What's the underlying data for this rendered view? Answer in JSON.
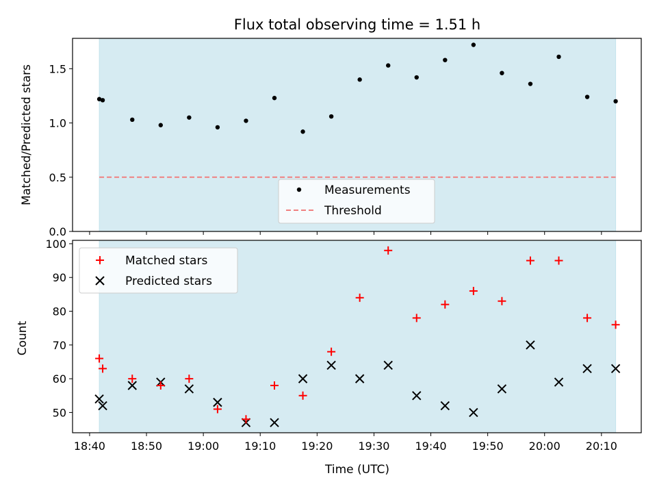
{
  "figure": {
    "title": "Flux total observing time = 1.51 h"
  },
  "colors": {
    "shade": "#add8e6",
    "shade_opacity": 0.5,
    "measurement": "#000000",
    "threshold": "#f08080",
    "matched": "#ff0000",
    "predicted": "#000000"
  },
  "chart_data": [
    {
      "type": "scatter",
      "title": "Flux total observing time = 1.51 h",
      "xlabel": "",
      "ylabel": "Matched/Predicted stars",
      "x_unit": "minutes after 18:00 UTC",
      "xlim": [
        "18:37",
        "20:17"
      ],
      "ylim": [
        0,
        1.78
      ],
      "yticks": [
        "0.0",
        "0.5",
        "1.0",
        "1.5"
      ],
      "shaded_span": [
        "18:41.7",
        "20:12.5"
      ],
      "series": [
        {
          "name": "Measurements",
          "marker": "dot",
          "x": [
            "18:41.7",
            "18:42.3",
            "18:47.5",
            "18:52.5",
            "18:57.5",
            "19:02.5",
            "19:07.5",
            "19:12.5",
            "19:17.5",
            "19:22.5",
            "19:27.5",
            "19:32.5",
            "19:37.5",
            "19:42.5",
            "19:47.5",
            "19:52.5",
            "19:57.5",
            "20:02.5",
            "20:07.5",
            "20:12.5"
          ],
          "values": [
            1.22,
            1.21,
            1.03,
            0.98,
            1.05,
            0.96,
            1.02,
            1.23,
            0.92,
            1.06,
            1.4,
            1.53,
            1.42,
            1.58,
            1.72,
            1.46,
            1.36,
            1.61,
            1.24,
            1.2
          ]
        }
      ],
      "threshold": {
        "name": "Threshold",
        "value": 0.5,
        "style": "dashed"
      },
      "legend": "lower-center"
    },
    {
      "type": "scatter",
      "xlabel": "Time (UTC)",
      "ylabel": "Count",
      "xlim": [
        "18:37",
        "20:17"
      ],
      "ylim": [
        44,
        101
      ],
      "yticks": [
        "50",
        "60",
        "70",
        "80",
        "90",
        "100"
      ],
      "xticks": [
        "18:40",
        "18:50",
        "19:00",
        "19:10",
        "19:20",
        "19:30",
        "19:40",
        "19:50",
        "20:00",
        "20:10"
      ],
      "shaded_span": [
        "18:41.7",
        "20:12.5"
      ],
      "series": [
        {
          "name": "Matched stars",
          "marker": "plus",
          "x": [
            "18:41.7",
            "18:42.3",
            "18:47.5",
            "18:52.5",
            "18:57.5",
            "19:02.5",
            "19:07.5",
            "19:12.5",
            "19:17.5",
            "19:22.5",
            "19:27.5",
            "19:32.5",
            "19:37.5",
            "19:42.5",
            "19:47.5",
            "19:52.5",
            "19:57.5",
            "20:02.5",
            "20:07.5",
            "20:12.5"
          ],
          "values": [
            66,
            63,
            60,
            58,
            60,
            51,
            48,
            58,
            55,
            68,
            84,
            98,
            78,
            82,
            86,
            83,
            95,
            95,
            78,
            76
          ]
        },
        {
          "name": "Predicted stars",
          "marker": "x",
          "x": [
            "18:41.7",
            "18:42.3",
            "18:47.5",
            "18:52.5",
            "18:57.5",
            "19:02.5",
            "19:07.5",
            "19:12.5",
            "19:17.5",
            "19:22.5",
            "19:27.5",
            "19:32.5",
            "19:37.5",
            "19:42.5",
            "19:47.5",
            "19:52.5",
            "19:57.5",
            "20:02.5",
            "20:07.5",
            "20:12.5"
          ],
          "values": [
            54,
            52,
            58,
            59,
            57,
            53,
            47,
            47,
            60,
            64,
            60,
            64,
            55,
            52,
            50,
            57,
            70,
            59,
            63,
            63
          ]
        }
      ],
      "legend": "upper-left"
    }
  ]
}
